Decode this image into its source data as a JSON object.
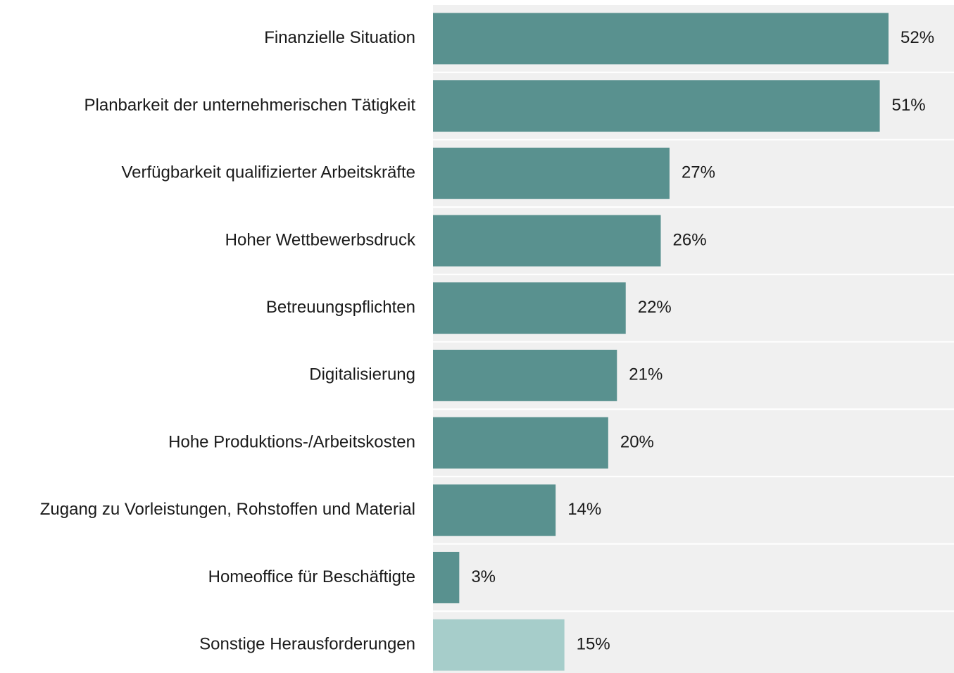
{
  "chart_data": {
    "type": "barh",
    "categories": [
      "Finanzielle Situation",
      "Planbarkeit der unternehmerischen Tätigkeit",
      "Verfügbarkeit qualifizierter Arbeitskräfte",
      "Hoher Wettbewerbsdruck",
      "Betreuungspflichten",
      "Digitalisierung",
      "Hohe Produktions-/Arbeitskosten",
      "Zugang zu Vorleistungen, Rohstoffen und Material",
      "Homeoffice für Beschäftigte",
      "Sonstige Herausforderungen"
    ],
    "values": [
      52,
      51,
      27,
      26,
      22,
      21,
      20,
      14,
      3,
      15
    ],
    "value_labels": [
      "52%",
      "51%",
      "27%",
      "26%",
      "22%",
      "21%",
      "20%",
      "14%",
      "3%",
      "15%"
    ],
    "colors": [
      "#59918f",
      "#59918f",
      "#59918f",
      "#59918f",
      "#59918f",
      "#59918f",
      "#59918f",
      "#59918f",
      "#59918f",
      "#a6cdca"
    ]
  }
}
